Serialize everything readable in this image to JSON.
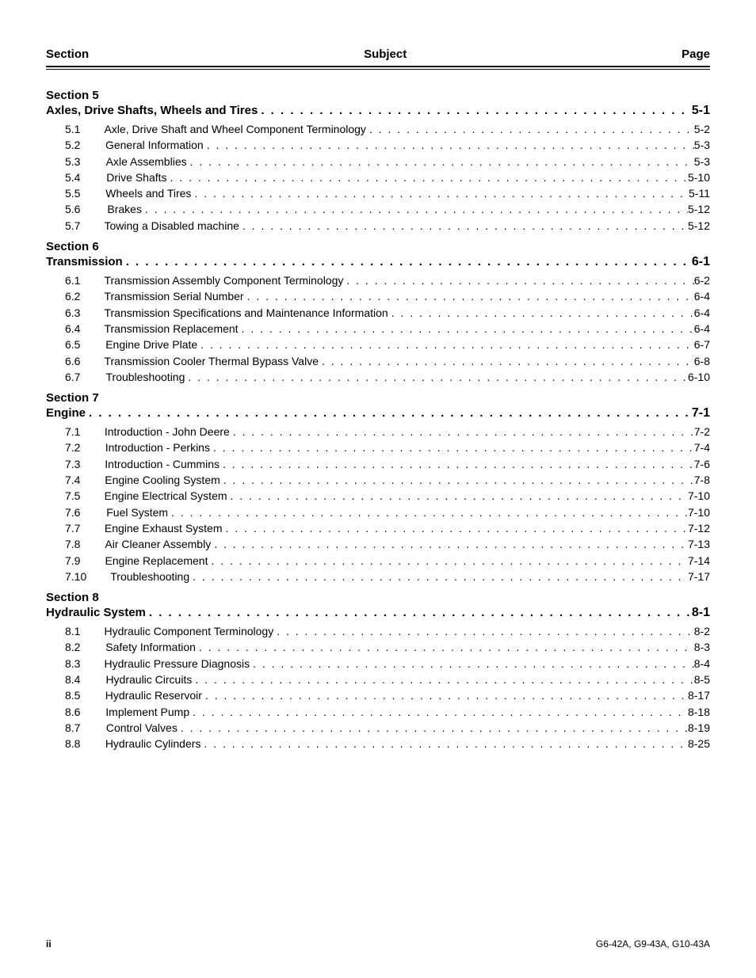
{
  "header": {
    "left": "Section",
    "center": "Subject",
    "right": "Page"
  },
  "dot_fill": ". . . . . . . . . . . . . . . . . . . . . . . . . . . . . . . . . . . . . . . . . . . . . . . . . . . . . . . . . . . . . . . . . . . . . . . . . . . . . . . . . . . . . . . . . . . . . . . . . . . . . . . . . . . . . . . . . . . . . . . . . . . . . . . . . . . . . . . . . . . . . . . .",
  "sections": [
    {
      "header": "Section 5",
      "title": "Axles, Drive Shafts, Wheels and Tires",
      "page": "5-1",
      "entries": [
        {
          "num": "5.1",
          "label": "Axle, Drive Shaft and Wheel Component Terminology",
          "page": "5-2"
        },
        {
          "num": "5.2",
          "label": "General Information",
          "page": "5-3"
        },
        {
          "num": "5.3",
          "label": "Axle Assemblies",
          "page": "5-3"
        },
        {
          "num": "5.4",
          "label": "Drive Shafts",
          "page": "5-10"
        },
        {
          "num": "5.5",
          "label": "Wheels and Tires",
          "page": "5-11"
        },
        {
          "num": "5.6",
          "label": "Brakes",
          "page": "5-12"
        },
        {
          "num": "5.7",
          "label": "Towing a Disabled machine",
          "page": "5-12"
        }
      ]
    },
    {
      "header": "Section 6",
      "title": "Transmission",
      "page": "6-1",
      "entries": [
        {
          "num": "6.1",
          "label": "Transmission Assembly Component Terminology",
          "page": "6-2"
        },
        {
          "num": "6.2",
          "label": "Transmission Serial Number",
          "page": "6-4"
        },
        {
          "num": "6.3",
          "label": "Transmission Specifications and Maintenance Information",
          "page": "6-4"
        },
        {
          "num": "6.4",
          "label": "Transmission Replacement",
          "page": "6-4"
        },
        {
          "num": "6.5",
          "label": "Engine Drive Plate",
          "page": "6-7"
        },
        {
          "num": "6.6",
          "label": "Transmission Cooler Thermal Bypass Valve",
          "page": "6-8"
        },
        {
          "num": "6.7",
          "label": "Troubleshooting",
          "page": "6-10"
        }
      ]
    },
    {
      "header": "Section 7",
      "title": "Engine",
      "page": "7-1",
      "entries": [
        {
          "num": "7.1",
          "label": "Introduction - John Deere",
          "page": "7-2"
        },
        {
          "num": "7.2",
          "label": "Introduction - Perkins",
          "page": "7-4"
        },
        {
          "num": "7.3",
          "label": "Introduction - Cummins",
          "page": "7-6"
        },
        {
          "num": "7.4",
          "label": "Engine Cooling System",
          "page": "7-8"
        },
        {
          "num": "7.5",
          "label": "Engine Electrical System",
          "page": "7-10"
        },
        {
          "num": "7.6",
          "label": "Fuel System",
          "page": "7-10"
        },
        {
          "num": "7.7",
          "label": "Engine Exhaust System",
          "page": "7-12"
        },
        {
          "num": "7.8",
          "label": "Air Cleaner Assembly",
          "page": "7-13"
        },
        {
          "num": "7.9",
          "label": "Engine Replacement",
          "page": "7-14"
        },
        {
          "num": "7.10",
          "label": "Troubleshooting",
          "page": "7-17"
        }
      ]
    },
    {
      "header": "Section 8",
      "title": "Hydraulic System",
      "page": "8-1",
      "entries": [
        {
          "num": "8.1",
          "label": "Hydraulic Component Terminology",
          "page": "8-2"
        },
        {
          "num": "8.2",
          "label": "Safety Information",
          "page": "8-3"
        },
        {
          "num": "8.3",
          "label": "Hydraulic Pressure Diagnosis",
          "page": "8-4"
        },
        {
          "num": "8.4",
          "label": "Hydraulic Circuits",
          "page": "8-5"
        },
        {
          "num": "8.5",
          "label": "Hydraulic Reservoir",
          "page": "8-17"
        },
        {
          "num": "8.6",
          "label": "Implement Pump",
          "page": "8-18"
        },
        {
          "num": "8.7",
          "label": "Control Valves",
          "page": "8-19"
        },
        {
          "num": "8.8",
          "label": "Hydraulic Cylinders",
          "page": "8-25"
        }
      ]
    }
  ],
  "footer": {
    "left": "ii",
    "right": "G6-42A, G9-43A, G10-43A"
  }
}
